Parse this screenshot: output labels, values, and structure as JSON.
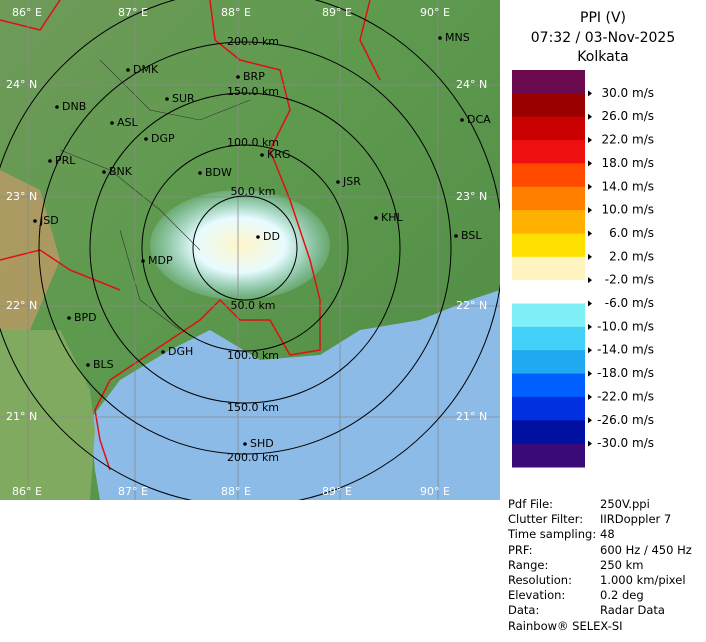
{
  "header": {
    "title": "PPI (V)",
    "time": "07:32 / 03-Nov-2025",
    "station": "Kolkata"
  },
  "colorbar": {
    "colors": [
      "#6b0a4e",
      "#9b0000",
      "#c80000",
      "#ee1010",
      "#ff4a00",
      "#ff8000",
      "#ffb000",
      "#ffe000",
      "#fff4c0",
      "#ffffff",
      "#80f0f8",
      "#40d0f8",
      "#20a8f0",
      "#0060ff",
      "#0030e0",
      "#0010a0",
      "#3a0a78"
    ],
    "labels": [
      "30.0 m/s",
      "26.0 m/s",
      "22.0 m/s",
      "18.0 m/s",
      "14.0 m/s",
      "10.0 m/s",
      "6.0 m/s",
      "2.0 m/s",
      "-2.0 m/s",
      "-6.0 m/s",
      "-10.0 m/s",
      "-14.0 m/s",
      "-18.0 m/s",
      "-22.0 m/s",
      "-26.0 m/s",
      "-30.0 m/s"
    ]
  },
  "map": {
    "lon_labels": [
      "86° E",
      "87° E",
      "88° E",
      "89° E",
      "90° E"
    ],
    "lat_labels": [
      "24° N",
      "23° N",
      "22° N",
      "21° N"
    ],
    "ring_labels": [
      "200.0 km",
      "150.0 km",
      "100.0 km",
      "50.0 km",
      "50.0 km",
      "100.0 km",
      "150.0 km",
      "200.0 km"
    ],
    "places": [
      "MNS",
      "DMK",
      "BRP",
      "DNB",
      "SUR",
      "ASL",
      "DGP",
      "DCA",
      "PRL",
      "BNK",
      "BDW",
      "KRG",
      "JSR",
      "KHL",
      "JSD",
      "BSL",
      "MDP",
      "DD",
      "BPD",
      "BLS",
      "DGH",
      "SHD"
    ]
  },
  "info": {
    "rows": [
      [
        "Pdf File:",
        "250V.ppi"
      ],
      [
        "Clutter Filter:",
        "IIRDoppler 7"
      ],
      [
        "Time sampling:",
        "48"
      ],
      [
        "PRF:",
        "600 Hz / 450 Hz"
      ],
      [
        "Range:",
        "250 km"
      ],
      [
        "Resolution:",
        "1.000 km/pixel"
      ],
      [
        "Elevation:",
        "0.2 deg"
      ],
      [
        "Data:",
        "Radar Data"
      ]
    ],
    "footer": "Rainbow® SELEX-SI"
  }
}
